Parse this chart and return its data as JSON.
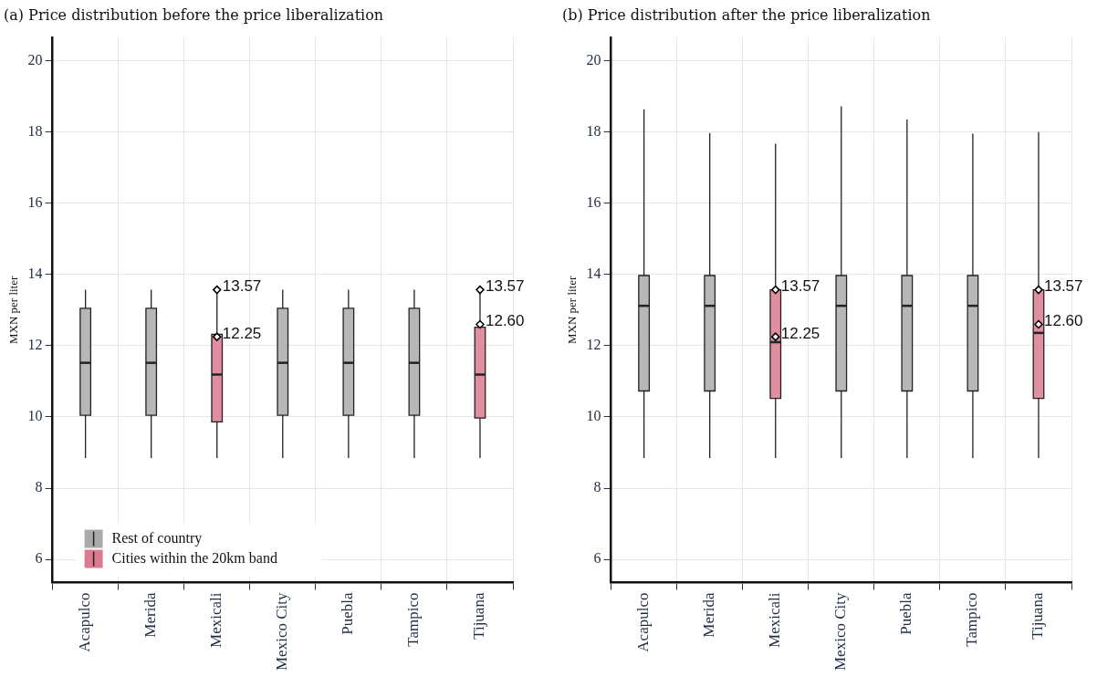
{
  "chart_data": [
    {
      "type": "box",
      "title": "(a) Price distribution before the price liberalization",
      "ylabel": "MXN per liter",
      "categories": [
        "Acapulco",
        "Merida",
        "Mexicali",
        "Mexico City",
        "Puebla",
        "Tampico",
        "Tijuana"
      ],
      "ylim": [
        5.35,
        20.65
      ],
      "yticks": [
        6,
        8,
        10,
        12,
        14,
        16,
        18,
        20
      ],
      "grid": true,
      "legend": "bottom left",
      "marker": "diamond",
      "series": [
        {
          "name": "Rest of country",
          "color": "#a9aaab",
          "boxes": [
            {
              "low": 8.85,
              "q1": 10.05,
              "median": 11.52,
              "q3": 13.05,
              "high": 13.57
            },
            {
              "low": 8.85,
              "q1": 10.05,
              "median": 11.52,
              "q3": 13.05,
              "high": 13.57
            },
            null,
            {
              "low": 8.85,
              "q1": 10.05,
              "median": 11.52,
              "q3": 13.05,
              "high": 13.57
            },
            {
              "low": 8.85,
              "q1": 10.05,
              "median": 11.52,
              "q3": 13.05,
              "high": 13.57
            },
            {
              "low": 8.85,
              "q1": 10.05,
              "median": 11.52,
              "q3": 13.05,
              "high": 13.57
            },
            null
          ]
        },
        {
          "name": "Cities within the 20km band",
          "color": "#dc7a91",
          "boxes": [
            null,
            null,
            {
              "low": 8.85,
              "q1": 9.86,
              "median": 11.19,
              "q3": 12.32,
              "high": 13.57
            },
            null,
            null,
            null,
            {
              "low": 8.85,
              "q1": 9.97,
              "median": 11.19,
              "q3": 12.52,
              "high": 13.57
            }
          ]
        },
        {
          "type": "scatter",
          "color": "#000000",
          "x": [
            "Mexicali",
            "Mexicali",
            "Tijuana",
            "Tijuana"
          ],
          "values": [
            13.57,
            12.25,
            13.57,
            12.6
          ],
          "value_labels": [
            "13.57",
            "12.25",
            "13.57",
            "12.60"
          ]
        }
      ]
    },
    {
      "type": "box",
      "title": "(b) Price distribution after the price liberalization",
      "ylabel": "MXN per liter",
      "categories": [
        "Acapulco",
        "Merida",
        "Mexicali",
        "Mexico City",
        "Puebla",
        "Tampico",
        "Tijuana"
      ],
      "ylim": [
        5.35,
        20.65
      ],
      "yticks": [
        6,
        8,
        10,
        12,
        14,
        16,
        18,
        20
      ],
      "grid": true,
      "marker": "diamond",
      "series": [
        {
          "color": "#a9aaab",
          "boxes": [
            {
              "low": 8.85,
              "q1": 10.73,
              "median": 13.12,
              "q3": 13.97,
              "high": 18.64
            },
            {
              "low": 8.85,
              "q1": 10.73,
              "median": 13.12,
              "q3": 13.97,
              "high": 17.97
            },
            null,
            {
              "low": 8.85,
              "q1": 10.73,
              "median": 13.12,
              "q3": 13.97,
              "high": 18.72
            },
            {
              "low": 8.85,
              "q1": 10.73,
              "median": 13.12,
              "q3": 13.97,
              "high": 18.35
            },
            {
              "low": 8.85,
              "q1": 10.73,
              "median": 13.12,
              "q3": 13.97,
              "high": 17.95
            },
            null
          ]
        },
        {
          "color": "#dc7a91",
          "boxes": [
            null,
            null,
            {
              "low": 8.85,
              "q1": 10.52,
              "median": 12.1,
              "q3": 13.57,
              "high": 17.67
            },
            null,
            null,
            null,
            {
              "low": 8.85,
              "q1": 10.52,
              "median": 12.36,
              "q3": 13.57,
              "high": 18.0
            }
          ]
        },
        {
          "type": "scatter",
          "color": "#000000",
          "x": [
            "Mexicali",
            "Mexicali",
            "Tijuana",
            "Tijuana"
          ],
          "values": [
            13.57,
            12.25,
            13.57,
            12.6
          ],
          "value_labels": [
            "13.57",
            "12.25",
            "13.57",
            "12.60"
          ]
        }
      ]
    }
  ]
}
